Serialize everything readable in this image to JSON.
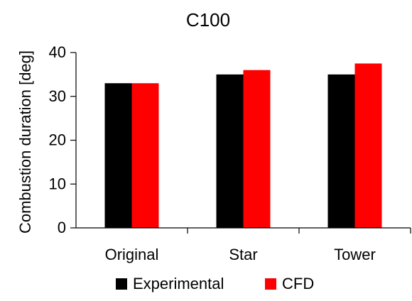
{
  "chart_data": {
    "type": "bar",
    "title": "C100",
    "xlabel": "",
    "ylabel": "Combustion duration [deg]",
    "categories": [
      "Original",
      "Star",
      "Tower"
    ],
    "series": [
      {
        "name": "Experimental",
        "color": "#000000",
        "values": [
          33,
          35,
          35
        ]
      },
      {
        "name": "CFD",
        "color": "#ff0000",
        "values": [
          33,
          36,
          37.5
        ]
      }
    ],
    "ylim": [
      0,
      40
    ],
    "yticks": [
      0,
      10,
      20,
      30,
      40
    ],
    "grid": false,
    "legend_position": "bottom"
  }
}
